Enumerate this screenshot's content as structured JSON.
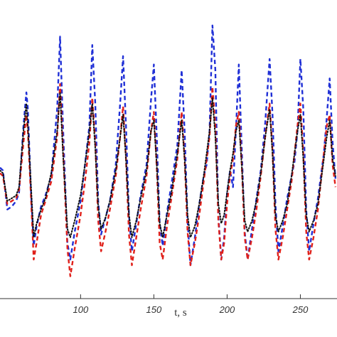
{
  "chart_data": {
    "type": "line",
    "title": "",
    "xlabel": "t, s",
    "ylabel": "",
    "xlim": [
      45,
      275
    ],
    "ylim": [
      0,
      100
    ],
    "xticks": [
      100,
      150,
      200,
      250
    ],
    "xtick_labels": [
      "100",
      "150",
      "200",
      "250"
    ],
    "grid": false,
    "series": [
      {
        "color": "#1f2fd6",
        "style": "dashed",
        "points": [
          [
            45,
            47
          ],
          [
            47,
            46
          ],
          [
            50,
            32
          ],
          [
            53,
            33
          ],
          [
            56,
            35
          ],
          [
            58,
            38
          ],
          [
            61,
            62
          ],
          [
            63,
            74
          ],
          [
            64,
            68
          ],
          [
            66,
            40
          ],
          [
            68,
            19
          ],
          [
            70,
            26
          ],
          [
            73,
            33
          ],
          [
            76,
            37
          ],
          [
            80,
            44
          ],
          [
            84,
            68
          ],
          [
            86,
            94
          ],
          [
            88,
            62
          ],
          [
            91,
            20
          ],
          [
            93,
            14
          ],
          [
            96,
            24
          ],
          [
            100,
            35
          ],
          [
            103,
            48
          ],
          [
            106,
            62
          ],
          [
            108,
            91
          ],
          [
            110,
            70
          ],
          [
            112,
            35
          ],
          [
            114,
            23
          ],
          [
            117,
            29
          ],
          [
            120,
            35
          ],
          [
            124,
            48
          ],
          [
            127,
            70
          ],
          [
            129,
            87
          ],
          [
            131,
            62
          ],
          [
            133,
            30
          ],
          [
            135,
            17
          ],
          [
            138,
            27
          ],
          [
            141,
            37
          ],
          [
            145,
            48
          ],
          [
            148,
            71
          ],
          [
            150,
            84
          ],
          [
            152,
            58
          ],
          [
            154,
            27
          ],
          [
            156,
            19
          ],
          [
            159,
            31
          ],
          [
            162,
            41
          ],
          [
            166,
            55
          ],
          [
            169,
            82
          ],
          [
            171,
            60
          ],
          [
            173,
            28
          ],
          [
            175,
            12
          ],
          [
            178,
            22
          ],
          [
            181,
            34
          ],
          [
            184,
            44
          ],
          [
            186,
            48
          ],
          [
            188,
            60
          ],
          [
            190,
            98
          ],
          [
            192,
            82
          ],
          [
            194,
            30
          ],
          [
            196,
            14
          ],
          [
            198,
            22
          ],
          [
            200,
            38
          ],
          [
            202,
            46
          ],
          [
            204,
            40
          ],
          [
            206,
            60
          ],
          [
            208,
            84
          ],
          [
            210,
            54
          ],
          [
            212,
            24
          ],
          [
            214,
            14
          ],
          [
            217,
            25
          ],
          [
            220,
            36
          ],
          [
            223,
            46
          ],
          [
            226,
            63
          ],
          [
            229,
            86
          ],
          [
            231,
            66
          ],
          [
            233,
            34
          ],
          [
            235,
            17
          ],
          [
            238,
            26
          ],
          [
            241,
            36
          ],
          [
            244,
            44
          ],
          [
            246,
            49
          ],
          [
            248,
            60
          ],
          [
            250,
            86
          ],
          [
            252,
            68
          ],
          [
            254,
            32
          ],
          [
            256,
            17
          ],
          [
            259,
            27
          ],
          [
            262,
            36
          ],
          [
            264,
            44
          ],
          [
            266,
            52
          ],
          [
            268,
            65
          ],
          [
            270,
            79
          ],
          [
            272,
            56
          ],
          [
            274,
            43
          ]
        ]
      },
      {
        "color": "#e0201a",
        "style": "dashed",
        "points": [
          [
            45,
            45
          ],
          [
            47,
            44
          ],
          [
            50,
            34
          ],
          [
            53,
            35
          ],
          [
            56,
            36
          ],
          [
            58,
            39
          ],
          [
            61,
            56
          ],
          [
            63,
            66
          ],
          [
            64,
            60
          ],
          [
            66,
            38
          ],
          [
            68,
            14
          ],
          [
            70,
            20
          ],
          [
            73,
            30
          ],
          [
            76,
            35
          ],
          [
            80,
            42
          ],
          [
            84,
            58
          ],
          [
            86,
            77
          ],
          [
            88,
            54
          ],
          [
            91,
            18
          ],
          [
            93,
            8
          ],
          [
            96,
            18
          ],
          [
            100,
            30
          ],
          [
            103,
            42
          ],
          [
            106,
            56
          ],
          [
            108,
            72
          ],
          [
            110,
            56
          ],
          [
            112,
            28
          ],
          [
            114,
            17
          ],
          [
            117,
            24
          ],
          [
            120,
            32
          ],
          [
            124,
            44
          ],
          [
            127,
            58
          ],
          [
            129,
            69
          ],
          [
            131,
            50
          ],
          [
            133,
            23
          ],
          [
            135,
            12
          ],
          [
            138,
            22
          ],
          [
            141,
            32
          ],
          [
            145,
            44
          ],
          [
            148,
            60
          ],
          [
            150,
            67
          ],
          [
            152,
            47
          ],
          [
            154,
            20
          ],
          [
            156,
            14
          ],
          [
            159,
            26
          ],
          [
            162,
            36
          ],
          [
            166,
            50
          ],
          [
            169,
            67
          ],
          [
            171,
            50
          ],
          [
            173,
            24
          ],
          [
            175,
            12
          ],
          [
            178,
            20
          ],
          [
            181,
            30
          ],
          [
            184,
            42
          ],
          [
            186,
            50
          ],
          [
            188,
            58
          ],
          [
            190,
            76
          ],
          [
            192,
            62
          ],
          [
            194,
            28
          ],
          [
            196,
            14
          ],
          [
            198,
            20
          ],
          [
            200,
            34
          ],
          [
            202,
            44
          ],
          [
            204,
            50
          ],
          [
            206,
            62
          ],
          [
            208,
            67
          ],
          [
            210,
            48
          ],
          [
            212,
            22
          ],
          [
            214,
            14
          ],
          [
            217,
            22
          ],
          [
            220,
            32
          ],
          [
            223,
            44
          ],
          [
            226,
            58
          ],
          [
            229,
            70
          ],
          [
            231,
            53
          ],
          [
            233,
            25
          ],
          [
            235,
            14
          ],
          [
            238,
            22
          ],
          [
            241,
            32
          ],
          [
            244,
            42
          ],
          [
            246,
            52
          ],
          [
            248,
            62
          ],
          [
            250,
            70
          ],
          [
            252,
            52
          ],
          [
            254,
            24
          ],
          [
            256,
            14
          ],
          [
            259,
            22
          ],
          [
            262,
            32
          ],
          [
            264,
            42
          ],
          [
            266,
            52
          ],
          [
            268,
            62
          ],
          [
            270,
            66
          ],
          [
            272,
            48
          ],
          [
            274,
            40
          ]
        ]
      },
      {
        "color": "#111111",
        "style": "dotted",
        "points": [
          [
            45,
            46
          ],
          [
            47,
            45
          ],
          [
            50,
            35
          ],
          [
            53,
            36
          ],
          [
            56,
            37
          ],
          [
            58,
            40
          ],
          [
            61,
            60
          ],
          [
            63,
            70
          ],
          [
            64,
            62
          ],
          [
            66,
            42
          ],
          [
            68,
            22
          ],
          [
            70,
            27
          ],
          [
            73,
            32
          ],
          [
            76,
            36
          ],
          [
            80,
            45
          ],
          [
            84,
            60
          ],
          [
            86,
            74
          ],
          [
            88,
            52
          ],
          [
            91,
            25
          ],
          [
            93,
            22
          ],
          [
            96,
            28
          ],
          [
            100,
            37
          ],
          [
            103,
            48
          ],
          [
            106,
            60
          ],
          [
            108,
            70
          ],
          [
            110,
            54
          ],
          [
            112,
            33
          ],
          [
            114,
            25
          ],
          [
            117,
            29
          ],
          [
            120,
            35
          ],
          [
            124,
            46
          ],
          [
            127,
            58
          ],
          [
            129,
            66
          ],
          [
            131,
            50
          ],
          [
            133,
            30
          ],
          [
            135,
            22
          ],
          [
            138,
            28
          ],
          [
            141,
            36
          ],
          [
            145,
            46
          ],
          [
            148,
            60
          ],
          [
            150,
            64
          ],
          [
            152,
            48
          ],
          [
            154,
            27
          ],
          [
            156,
            22
          ],
          [
            159,
            30
          ],
          [
            162,
            38
          ],
          [
            166,
            52
          ],
          [
            169,
            64
          ],
          [
            171,
            50
          ],
          [
            173,
            30
          ],
          [
            175,
            22
          ],
          [
            178,
            26
          ],
          [
            181,
            34
          ],
          [
            184,
            44
          ],
          [
            186,
            52
          ],
          [
            188,
            60
          ],
          [
            190,
            72
          ],
          [
            192,
            58
          ],
          [
            194,
            34
          ],
          [
            196,
            27
          ],
          [
            198,
            30
          ],
          [
            200,
            38
          ],
          [
            202,
            46
          ],
          [
            204,
            52
          ],
          [
            206,
            60
          ],
          [
            208,
            64
          ],
          [
            210,
            48
          ],
          [
            212,
            28
          ],
          [
            214,
            24
          ],
          [
            217,
            28
          ],
          [
            220,
            35
          ],
          [
            223,
            45
          ],
          [
            226,
            58
          ],
          [
            229,
            68
          ],
          [
            231,
            52
          ],
          [
            233,
            30
          ],
          [
            235,
            24
          ],
          [
            238,
            28
          ],
          [
            241,
            34
          ],
          [
            244,
            44
          ],
          [
            246,
            52
          ],
          [
            248,
            60
          ],
          [
            250,
            66
          ],
          [
            252,
            50
          ],
          [
            254,
            30
          ],
          [
            256,
            24
          ],
          [
            259,
            28
          ],
          [
            262,
            34
          ],
          [
            264,
            42
          ],
          [
            266,
            50
          ],
          [
            268,
            58
          ],
          [
            270,
            64
          ],
          [
            272,
            50
          ],
          [
            274,
            44
          ]
        ]
      }
    ]
  }
}
